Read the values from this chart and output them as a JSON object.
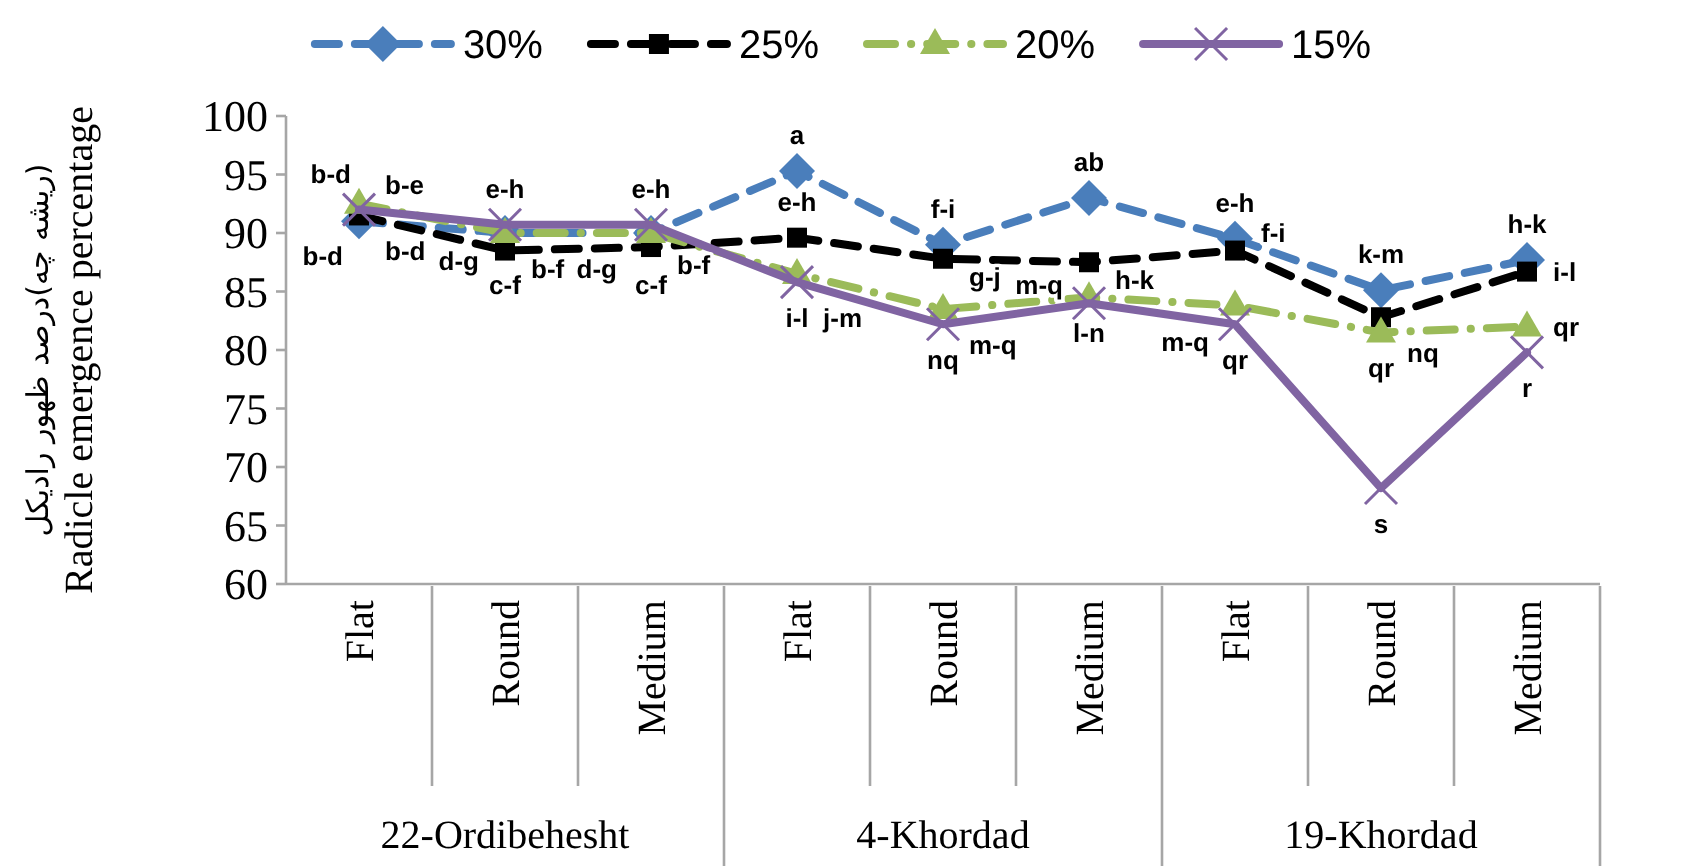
{
  "chart_data": {
    "type": "line",
    "categories": [
      "Flat",
      "Round",
      "Medium",
      "Flat",
      "Round",
      "Medium",
      "Flat",
      "Round",
      "Medium"
    ],
    "ylabel": "Radicle emergence percentage",
    "annotations": [
      "22-Ordibehesht",
      "4-Khordad",
      "19-Khordad",
      "(ریشه چه)درصد ظهور رادیکل"
    ],
    "series": [
      {
        "name": "30%",
        "color": "#4a7ebb",
        "marker": "diamond",
        "line_style": "dashed",
        "values": [
          91,
          90,
          90,
          95.3,
          89,
          93,
          89.5,
          85.1,
          87.7
        ],
        "value_labels": [
          "b-e",
          "e-h",
          "e-h",
          "a",
          "f-i",
          "ab",
          "e-h",
          "k-m",
          "h-k"
        ]
      },
      {
        "name": "25%",
        "color": "#000000",
        "marker": "square",
        "line_style": "dashed",
        "values": [
          91.5,
          88.5,
          88.8,
          89.6,
          87.8,
          87.5,
          88.5,
          82.8,
          86.7
        ],
        "value_labels": [
          "b-d",
          "b-f",
          "b-f",
          "e-h",
          "g-j",
          "h-k",
          "f-i",
          "nq",
          "i-l"
        ]
      },
      {
        "name": "20%",
        "color": "#9bbb59",
        "marker": "triangle",
        "line_style": "dotted",
        "values": [
          92.5,
          90,
          90,
          86.5,
          83.5,
          84.5,
          83.8,
          81.5,
          82
        ],
        "value_labels": [
          "b-d",
          "c-f",
          "c-f",
          "i-l",
          "m-q",
          "l-n",
          "m-q",
          "qr",
          "qr"
        ]
      },
      {
        "name": "15%",
        "color": "#8064a2",
        "marker": "cross",
        "line_style": "solid",
        "values": [
          92,
          90.7,
          90.7,
          85.8,
          82.2,
          84,
          82.2,
          68.2,
          79.8
        ],
        "value_labels": [
          "b-d",
          "d-g",
          "d-g",
          "j-m",
          "nq",
          "m-q",
          "qr",
          "s",
          "r"
        ]
      }
    ],
    "ylim": [
      60,
      100
    ],
    "yticks": [
      60,
      65,
      70,
      75,
      80,
      85,
      90,
      95,
      100
    ],
    "legend": "top",
    "grid": false
  }
}
